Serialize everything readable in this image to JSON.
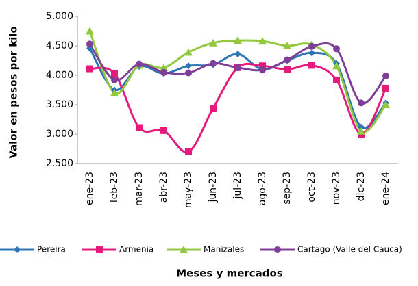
{
  "chart_data": {
    "type": "line",
    "x_label": "Meses  y mercados",
    "y_label": "Valor en pesos por kilo",
    "categories": [
      "ene-23",
      "feb-23",
      "mar-23",
      "abr-23",
      "may-23",
      "jun-23",
      "jul-23",
      "ago-23",
      "sep-23",
      "oct-23",
      "nov-23",
      "dic-23",
      "ene-24"
    ],
    "series": [
      {
        "name": "Pereira",
        "color": "#2e75b6",
        "marker": "diamond",
        "values": [
          4460,
          3750,
          4150,
          4030,
          4160,
          4180,
          4360,
          4100,
          4250,
          4380,
          4200,
          3120,
          3530
        ]
      },
      {
        "name": "Armenia",
        "color": "#e6197d",
        "marker": "square",
        "values": [
          4110,
          4030,
          3110,
          3060,
          2700,
          3440,
          4130,
          4160,
          4100,
          4170,
          3920,
          3000,
          3780
        ]
      },
      {
        "name": "Manizales",
        "color": "#92c83e",
        "marker": "triangle",
        "values": [
          4750,
          3700,
          4170,
          4130,
          4390,
          4550,
          4590,
          4580,
          4500,
          4520,
          4160,
          3050,
          3500
        ]
      },
      {
        "name": "Cartago (Valle del Cauca)",
        "color": "#7f3f98",
        "marker": "circle",
        "values": [
          4530,
          3920,
          4190,
          4050,
          4040,
          4200,
          4130,
          4090,
          4260,
          4490,
          4450,
          3530,
          3990
        ]
      }
    ],
    "ylim": [
      2500,
      5000
    ],
    "yticks": [
      {
        "value": 2500,
        "label": "2.500"
      },
      {
        "value": 3000,
        "label": "3.000"
      },
      {
        "value": 3500,
        "label": "3.500"
      },
      {
        "value": 4000,
        "label": "4.000"
      },
      {
        "value": 4500,
        "label": "4.500"
      },
      {
        "value": 5000,
        "label": "5.000"
      }
    ],
    "legend": "bottom"
  }
}
